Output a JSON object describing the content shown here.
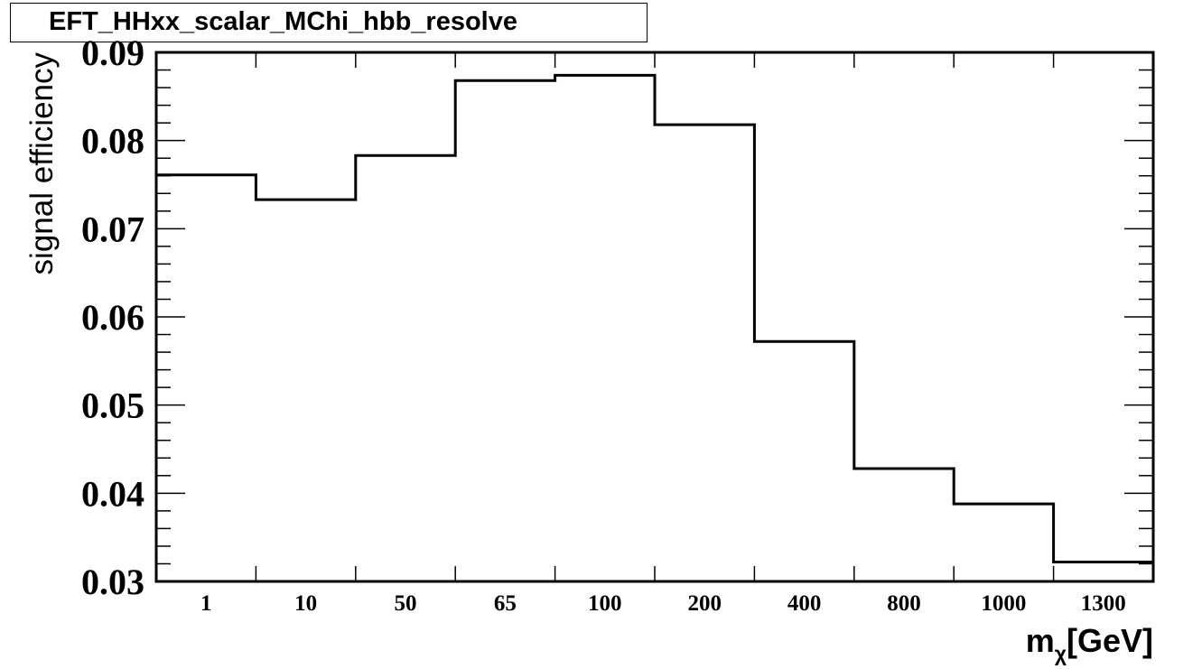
{
  "chart_data": {
    "type": "bar",
    "style": "step-histogram",
    "title": "EFT_HHxx_scalar_MChi_hbb_resolve",
    "xlabel": "m",
    "xlabel_subscript": "χ",
    "xlabel_unit": "[GeV]",
    "ylabel": "signal efficiency",
    "categories": [
      "1",
      "10",
      "50",
      "65",
      "100",
      "200",
      "400",
      "800",
      "1000",
      "1300"
    ],
    "values": [
      0.0761,
      0.0733,
      0.0783,
      0.0868,
      0.0874,
      0.0818,
      0.0572,
      0.0428,
      0.0388,
      0.0322
    ],
    "ylim": [
      0.03,
      0.09
    ],
    "yticks": [
      "0.03",
      "0.04",
      "0.05",
      "0.06",
      "0.07",
      "0.08",
      "0.09"
    ],
    "grid": false,
    "legend": "none",
    "line_color": "#000000"
  }
}
